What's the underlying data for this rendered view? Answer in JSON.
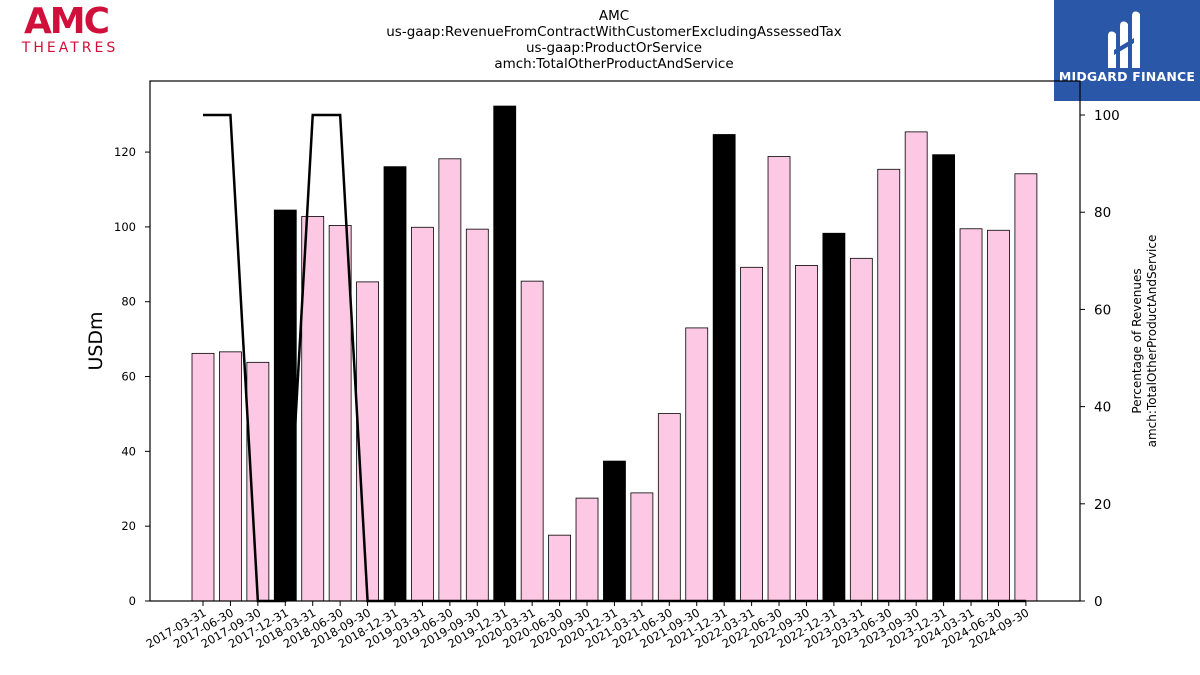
{
  "logos": {
    "left": {
      "brand": "AMC",
      "subtitle": "THEATRES",
      "color": "#d0103a"
    },
    "right": {
      "brand": "MIDGARD FINANCE",
      "color": "#2b57a8"
    }
  },
  "chart_data": {
    "type": "bar",
    "title_lines": [
      "AMC",
      "us-gaap:RevenueFromContractWithCustomerExcludingAssessedTax",
      "us-gaap:ProductOrService",
      "amch:TotalOtherProductAndService"
    ],
    "ylabel": "USDm",
    "ylabel_right": [
      "Percentage of Revenues",
      "amch:TotalOtherProductAndService"
    ],
    "ylim": [
      0,
      139
    ],
    "ylim_right": [
      0,
      107
    ],
    "yticks": [
      0,
      20,
      40,
      60,
      80,
      100,
      120
    ],
    "yticks_right": [
      0,
      20,
      40,
      60,
      80,
      100
    ],
    "grid": false,
    "categories": [
      "2017-03-31",
      "2017-06-30",
      "2017-09-30",
      "2017-12-31",
      "2018-03-31",
      "2018-06-30",
      "2018-09-30",
      "2018-12-31",
      "2019-03-31",
      "2019-06-30",
      "2019-09-30",
      "2019-12-31",
      "2020-03-31",
      "2020-06-30",
      "2020-09-30",
      "2020-12-31",
      "2021-03-31",
      "2021-06-30",
      "2021-09-30",
      "2021-12-31",
      "2022-03-31",
      "2022-06-30",
      "2022-09-30",
      "2022-12-31",
      "2023-03-31",
      "2023-06-30",
      "2023-09-30",
      "2023-12-31",
      "2024-03-31",
      "2024-06-30",
      "2024-09-30"
    ],
    "values": [
      66.2,
      66.6,
      63.8,
      104.5,
      102.8,
      100.4,
      85.3,
      116.1,
      99.9,
      118.2,
      99.4,
      132.3,
      85.5,
      17.6,
      27.5,
      37.4,
      28.9,
      50.1,
      73.0,
      124.7,
      89.2,
      118.8,
      89.7,
      98.3,
      91.6,
      115.4,
      125.4,
      119.3,
      99.5,
      99.1,
      114.2
    ],
    "bar_colors": {
      "quarter": "#fcc8e3",
      "year_end": "#000000"
    },
    "year_end_flags": [
      false,
      false,
      false,
      true,
      false,
      false,
      false,
      true,
      false,
      false,
      false,
      true,
      false,
      false,
      false,
      true,
      false,
      false,
      false,
      true,
      false,
      false,
      false,
      true,
      false,
      false,
      false,
      true,
      false,
      false,
      false
    ],
    "line_series": {
      "axis": "right",
      "values": [
        100,
        100,
        0,
        0,
        100,
        100,
        0,
        0,
        0,
        0,
        0,
        0,
        0,
        0,
        0,
        0,
        0,
        0,
        0,
        0,
        0,
        0,
        0,
        0,
        0,
        0,
        0,
        0,
        0,
        0,
        0
      ],
      "color": "#000000"
    }
  }
}
